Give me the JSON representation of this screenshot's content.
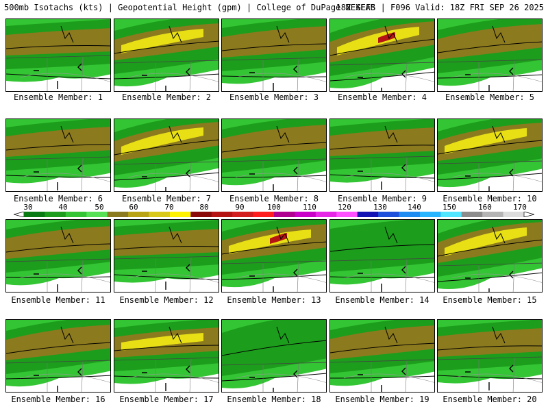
{
  "header": {
    "left": "500mb Isotachs (kts) | Geopotential Height (gpm) | College of DuPage NEXLAB",
    "right": "18Z GEFS | F096 Valid: 18Z FRI SEP 26 2025"
  },
  "panel_label_prefix": "Ensemble Member:",
  "members": [
    {
      "label": "Ensemble Member: 1",
      "jet": "strong",
      "max_class": 60
    },
    {
      "label": "Ensemble Member: 2",
      "jet": "strong",
      "max_class": 70
    },
    {
      "label": "Ensemble Member: 3",
      "jet": "strong",
      "max_class": 60
    },
    {
      "label": "Ensemble Member: 4",
      "jet": "strong",
      "max_class": 80
    },
    {
      "label": "Ensemble Member: 5",
      "jet": "strong",
      "max_class": 60
    },
    {
      "label": "Ensemble Member: 6",
      "jet": "moderate",
      "max_class": 60
    },
    {
      "label": "Ensemble Member: 7",
      "jet": "strong",
      "max_class": 70
    },
    {
      "label": "Ensemble Member: 8",
      "jet": "moderate",
      "max_class": 60
    },
    {
      "label": "Ensemble Member: 9",
      "jet": "moderate",
      "max_class": 60
    },
    {
      "label": "Ensemble Member: 10",
      "jet": "strong",
      "max_class": 70
    },
    {
      "label": "Ensemble Member: 11",
      "jet": "moderate",
      "max_class": 60
    },
    {
      "label": "Ensemble Member: 12",
      "jet": "moderate",
      "max_class": 60
    },
    {
      "label": "Ensemble Member: 13",
      "jet": "strong",
      "max_class": 80
    },
    {
      "label": "Ensemble Member: 14",
      "jet": "weak",
      "max_class": 50
    },
    {
      "label": "Ensemble Member: 15",
      "jet": "strong",
      "max_class": 70
    },
    {
      "label": "Ensemble Member: 16",
      "jet": "moderate",
      "max_class": 60
    },
    {
      "label": "Ensemble Member: 17",
      "jet": "strong",
      "max_class": 70
    },
    {
      "label": "Ensemble Member: 18",
      "jet": "weak",
      "max_class": 50
    },
    {
      "label": "Ensemble Member: 19",
      "jet": "moderate",
      "max_class": 60
    },
    {
      "label": "Ensemble Member: 20",
      "jet": "moderate",
      "max_class": 60
    }
  ],
  "colorbar": {
    "ticks": [
      "30",
      "40",
      "50",
      "60",
      "70",
      "80",
      "90",
      "100",
      "110",
      "120",
      "130",
      "140",
      "150",
      "160",
      "170"
    ],
    "colors": [
      "#0a7a12",
      "#1c9e1c",
      "#33c533",
      "#55e055",
      "#8c7a1e",
      "#b8a314",
      "#d8c81a",
      "#fff200",
      "#8a0a0a",
      "#b41414",
      "#d21e1e",
      "#ff1e1e",
      "#b00090",
      "#c800c8",
      "#e628e6",
      "#ff50ff",
      "#1414b4",
      "#1e50dc",
      "#1e8cf0",
      "#28b4ff",
      "#50e6ff",
      "#8c8c8c",
      "#b4b4b4",
      "#dcdcdc"
    ]
  },
  "colors": {
    "green_dark": "#0a7a12",
    "green": "#1c9e1c",
    "green_light": "#33c533",
    "olive": "#8c7a1e",
    "yellow": "#e8e015",
    "red": "#b41414"
  }
}
